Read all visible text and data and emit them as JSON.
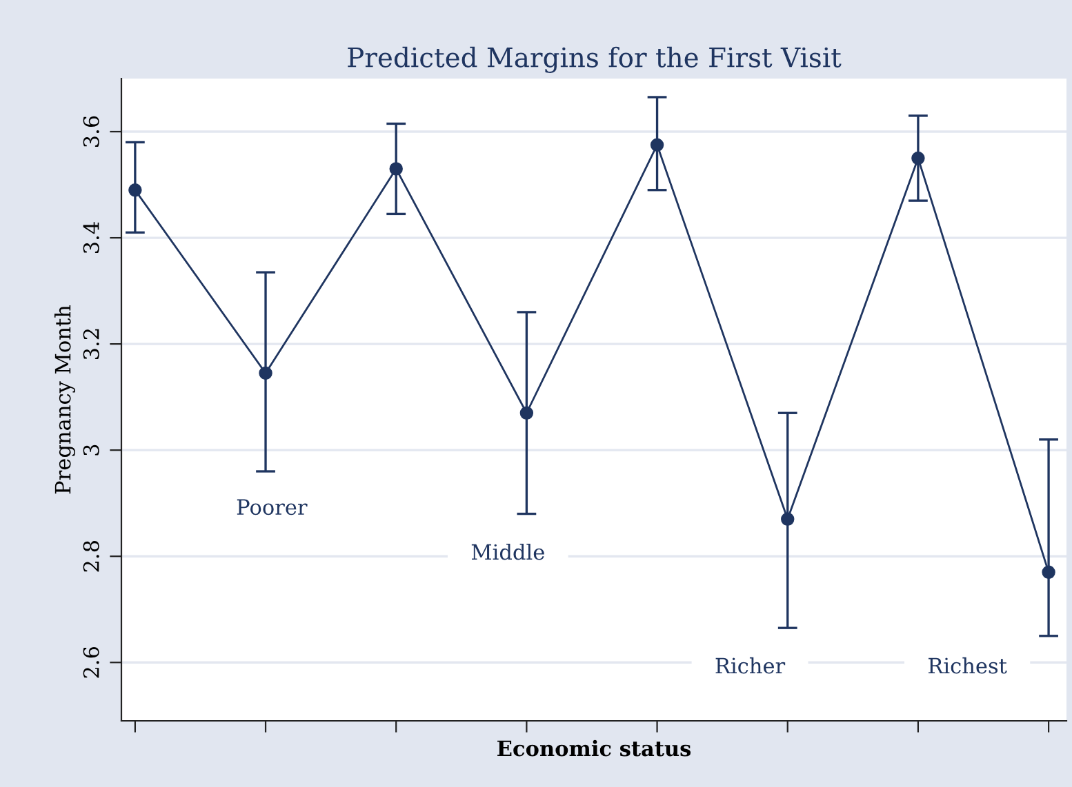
{
  "chart_data": {
    "type": "line",
    "title": "Predicted Margins for the First Visit",
    "xlabel": "Economic status",
    "ylabel": "Pregnancy Month",
    "categories": [
      null,
      null,
      null,
      null,
      null,
      null,
      null,
      null
    ],
    "series": [
      {
        "color": "#1f3560",
        "values": [
          3.49,
          3.145,
          3.53,
          3.07,
          3.575,
          2.87,
          3.55,
          2.77
        ],
        "errors": [
          [
            3.41,
            3.58
          ],
          [
            2.96,
            3.335
          ],
          [
            3.445,
            3.615
          ],
          [
            2.88,
            3.26
          ],
          [
            3.49,
            3.665
          ],
          [
            2.665,
            3.07
          ],
          [
            3.47,
            3.63
          ],
          [
            2.65,
            3.02
          ]
        ]
      }
    ],
    "annotations": [
      "Poorer",
      "Middle",
      "Richer",
      "Richest"
    ],
    "ylim": [
      2.49,
      3.7
    ],
    "yticks": [
      2.6,
      2.8,
      3,
      3.2,
      3.4,
      3.6
    ],
    "grid": "y",
    "tick_labels": "y",
    "marker": "circle",
    "line_style": "solid"
  }
}
